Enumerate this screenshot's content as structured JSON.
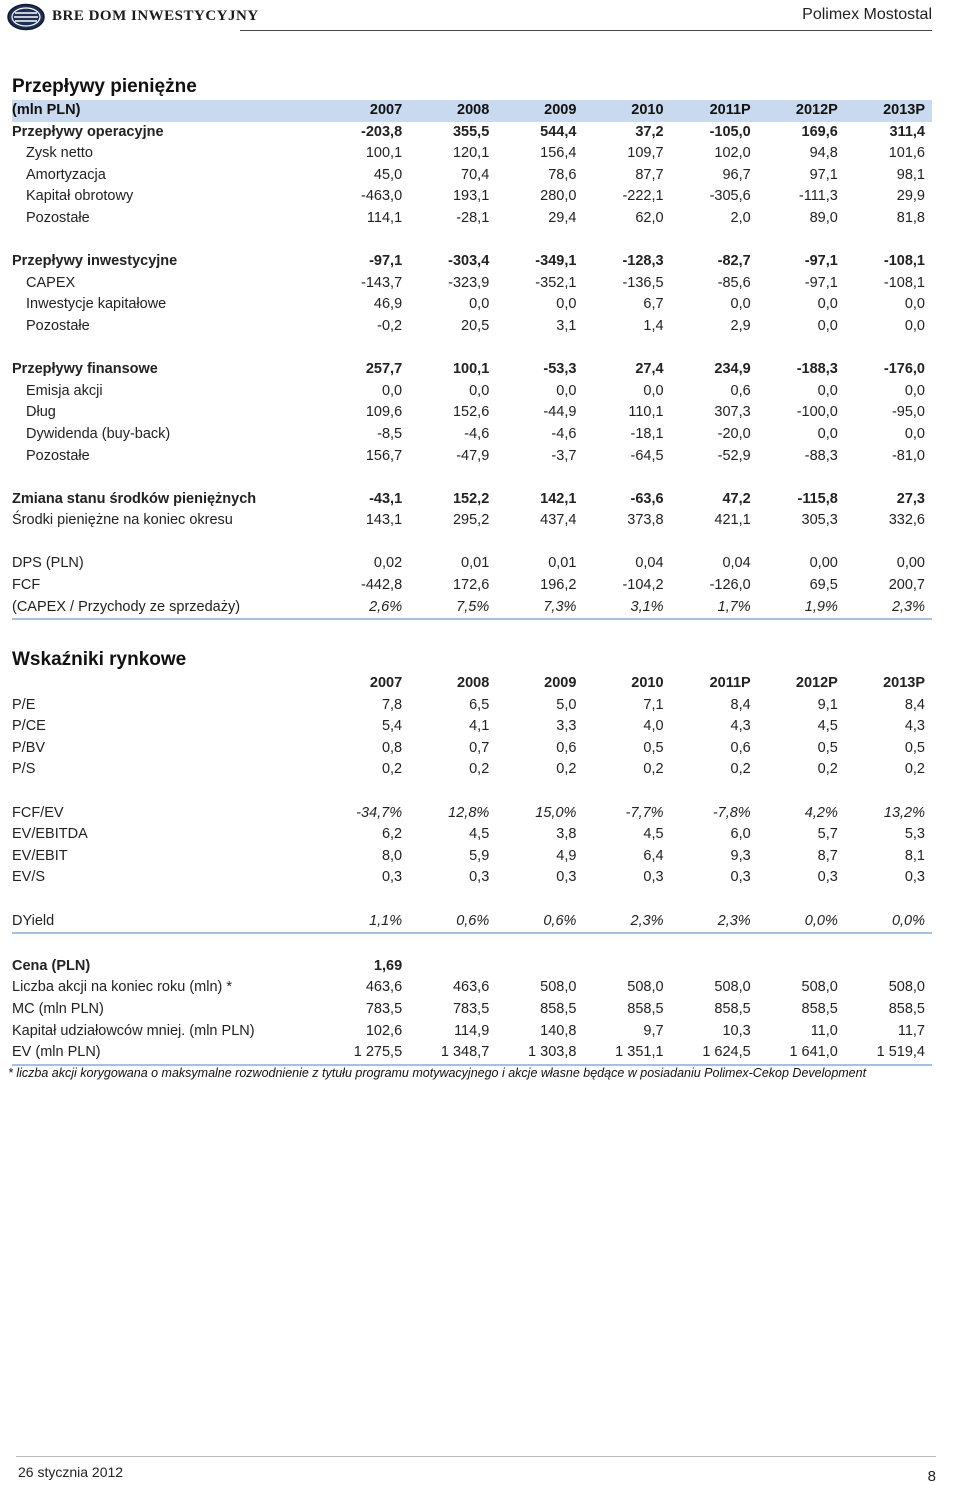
{
  "header": {
    "brand": "BRE DOM INWESTYCYJNY",
    "company": "Polimex Mostostal"
  },
  "cashflow": {
    "title": "Przepływy pieniężne",
    "unit_label": "(mln PLN)",
    "years": [
      "2007",
      "2008",
      "2009",
      "2010",
      "2011P",
      "2012P",
      "2013P"
    ],
    "rows": [
      {
        "label": "Przepływy operacyjne",
        "values": [
          "-203,8",
          "355,5",
          "544,4",
          "37,2",
          "-105,0",
          "169,6",
          "311,4"
        ],
        "style": "bold"
      },
      {
        "label": "Zysk netto",
        "values": [
          "100,1",
          "120,1",
          "156,4",
          "109,7",
          "102,0",
          "94,8",
          "101,6"
        ],
        "style": "sub"
      },
      {
        "label": "Amortyzacja",
        "values": [
          "45,0",
          "70,4",
          "78,6",
          "87,7",
          "96,7",
          "97,1",
          "98,1"
        ],
        "style": "sub"
      },
      {
        "label": "Kapitał obrotowy",
        "values": [
          "-463,0",
          "193,1",
          "280,0",
          "-222,1",
          "-305,6",
          "-111,3",
          "29,9"
        ],
        "style": "sub"
      },
      {
        "label": "Pozostałe",
        "values": [
          "114,1",
          "-28,1",
          "29,4",
          "62,0",
          "2,0",
          "89,0",
          "81,8"
        ],
        "style": "sub"
      },
      {
        "label": "",
        "values": [
          "",
          "",
          "",
          "",
          "",
          "",
          ""
        ],
        "style": "spacer"
      },
      {
        "label": "Przepływy inwestycyjne",
        "values": [
          "-97,1",
          "-303,4",
          "-349,1",
          "-128,3",
          "-82,7",
          "-97,1",
          "-108,1"
        ],
        "style": "bold"
      },
      {
        "label": "CAPEX",
        "values": [
          "-143,7",
          "-323,9",
          "-352,1",
          "-136,5",
          "-85,6",
          "-97,1",
          "-108,1"
        ],
        "style": "sub"
      },
      {
        "label": "Inwestycje kapitałowe",
        "values": [
          "46,9",
          "0,0",
          "0,0",
          "6,7",
          "0,0",
          "0,0",
          "0,0"
        ],
        "style": "sub"
      },
      {
        "label": "Pozostałe",
        "values": [
          "-0,2",
          "20,5",
          "3,1",
          "1,4",
          "2,9",
          "0,0",
          "0,0"
        ],
        "style": "sub"
      },
      {
        "label": "",
        "values": [
          "",
          "",
          "",
          "",
          "",
          "",
          ""
        ],
        "style": "spacer"
      },
      {
        "label": "Przepływy finansowe",
        "values": [
          "257,7",
          "100,1",
          "-53,3",
          "27,4",
          "234,9",
          "-188,3",
          "-176,0"
        ],
        "style": "bold"
      },
      {
        "label": "Emisja akcji",
        "values": [
          "0,0",
          "0,0",
          "0,0",
          "0,0",
          "0,6",
          "0,0",
          "0,0"
        ],
        "style": "sub"
      },
      {
        "label": "Dług",
        "values": [
          "109,6",
          "152,6",
          "-44,9",
          "110,1",
          "307,3",
          "-100,0",
          "-95,0"
        ],
        "style": "sub"
      },
      {
        "label": "Dywidenda (buy-back)",
        "values": [
          "-8,5",
          "-4,6",
          "-4,6",
          "-18,1",
          "-20,0",
          "0,0",
          "0,0"
        ],
        "style": "sub"
      },
      {
        "label": "Pozostałe",
        "values": [
          "156,7",
          "-47,9",
          "-3,7",
          "-64,5",
          "-52,9",
          "-88,3",
          "-81,0"
        ],
        "style": "sub"
      },
      {
        "label": "",
        "values": [
          "",
          "",
          "",
          "",
          "",
          "",
          ""
        ],
        "style": "spacer"
      },
      {
        "label": "Zmiana stanu środków pieniężnych",
        "values": [
          "-43,1",
          "152,2",
          "142,1",
          "-63,6",
          "47,2",
          "-115,8",
          "27,3"
        ],
        "style": "bold"
      },
      {
        "label": "Środki pieniężne na koniec okresu",
        "values": [
          "143,1",
          "295,2",
          "437,4",
          "373,8",
          "421,1",
          "305,3",
          "332,6"
        ],
        "style": "plain"
      },
      {
        "label": "",
        "values": [
          "",
          "",
          "",
          "",
          "",
          "",
          ""
        ],
        "style": "spacer"
      },
      {
        "label": "DPS (PLN)",
        "values": [
          "0,02",
          "0,01",
          "0,01",
          "0,04",
          "0,04",
          "0,00",
          "0,00"
        ],
        "style": "plain"
      },
      {
        "label": "FCF",
        "values": [
          "-442,8",
          "172,6",
          "196,2",
          "-104,2",
          "-126,0",
          "69,5",
          "200,7"
        ],
        "style": "plain"
      },
      {
        "label": "(CAPEX / Przychody ze sprzedaży)",
        "values": [
          "2,6%",
          "7,5%",
          "7,3%",
          "3,1%",
          "1,7%",
          "1,9%",
          "2,3%"
        ],
        "style": "italic last"
      }
    ]
  },
  "market": {
    "title": "Wskaźniki rynkowe",
    "years": [
      "2007",
      "2008",
      "2009",
      "2010",
      "2011P",
      "2012P",
      "2013P"
    ],
    "rows": [
      {
        "label": "P/E",
        "values": [
          "7,8",
          "6,5",
          "5,0",
          "7,1",
          "8,4",
          "9,1",
          "8,4"
        ],
        "style": "plain"
      },
      {
        "label": "P/CE",
        "values": [
          "5,4",
          "4,1",
          "3,3",
          "4,0",
          "4,3",
          "4,5",
          "4,3"
        ],
        "style": "plain"
      },
      {
        "label": "P/BV",
        "values": [
          "0,8",
          "0,7",
          "0,6",
          "0,5",
          "0,6",
          "0,5",
          "0,5"
        ],
        "style": "plain"
      },
      {
        "label": "P/S",
        "values": [
          "0,2",
          "0,2",
          "0,2",
          "0,2",
          "0,2",
          "0,2",
          "0,2"
        ],
        "style": "plain"
      },
      {
        "label": "",
        "values": [
          "",
          "",
          "",
          "",
          "",
          "",
          ""
        ],
        "style": "spacer"
      },
      {
        "label": "FCF/EV",
        "values": [
          "-34,7%",
          "12,8%",
          "15,0%",
          "-7,7%",
          "-7,8%",
          "4,2%",
          "13,2%"
        ],
        "style": "italic"
      },
      {
        "label": "EV/EBITDA",
        "values": [
          "6,2",
          "4,5",
          "3,8",
          "4,5",
          "6,0",
          "5,7",
          "5,3"
        ],
        "style": "plain"
      },
      {
        "label": "EV/EBIT",
        "values": [
          "8,0",
          "5,9",
          "4,9",
          "6,4",
          "9,3",
          "8,7",
          "8,1"
        ],
        "style": "plain"
      },
      {
        "label": "EV/S",
        "values": [
          "0,3",
          "0,3",
          "0,3",
          "0,3",
          "0,3",
          "0,3",
          "0,3"
        ],
        "style": "plain"
      },
      {
        "label": "",
        "values": [
          "",
          "",
          "",
          "",
          "",
          "",
          ""
        ],
        "style": "spacer"
      },
      {
        "label": "DYield",
        "values": [
          "1,1%",
          "0,6%",
          "0,6%",
          "2,3%",
          "2,3%",
          "0,0%",
          "0,0%"
        ],
        "style": "italic last"
      },
      {
        "label": "",
        "values": [
          "",
          "",
          "",
          "",
          "",
          "",
          ""
        ],
        "style": "spacer"
      },
      {
        "label": "Cena (PLN)",
        "values": [
          "1,69",
          "",
          "",
          "",
          "",
          "",
          ""
        ],
        "style": "bold"
      },
      {
        "label": "Liczba akcji na koniec roku (mln) *",
        "values": [
          "463,6",
          "463,6",
          "508,0",
          "508,0",
          "508,0",
          "508,0",
          "508,0"
        ],
        "style": "plain"
      },
      {
        "label": "MC (mln PLN)",
        "values": [
          "783,5",
          "783,5",
          "858,5",
          "858,5",
          "858,5",
          "858,5",
          "858,5"
        ],
        "style": "plain"
      },
      {
        "label": "Kapitał udziałowców mniej. (mln PLN)",
        "values": [
          "102,6",
          "114,9",
          "140,8",
          "9,7",
          "10,3",
          "11,0",
          "11,7"
        ],
        "style": "plain"
      },
      {
        "label": "EV (mln PLN)",
        "values": [
          "1 275,5",
          "1 348,7",
          "1 303,8",
          "1 351,1",
          "1 624,5",
          "1 641,0",
          "1 519,4"
        ],
        "style": "last"
      }
    ]
  },
  "footnote": "* liczba akcji korygowana o maksymalne rozwodnienie z tytułu programu motywacyjnego i akcje własne będące w posiadaniu Polimex-Cekop Development",
  "footer": {
    "date": "26 stycznia 2012",
    "page": "8"
  }
}
